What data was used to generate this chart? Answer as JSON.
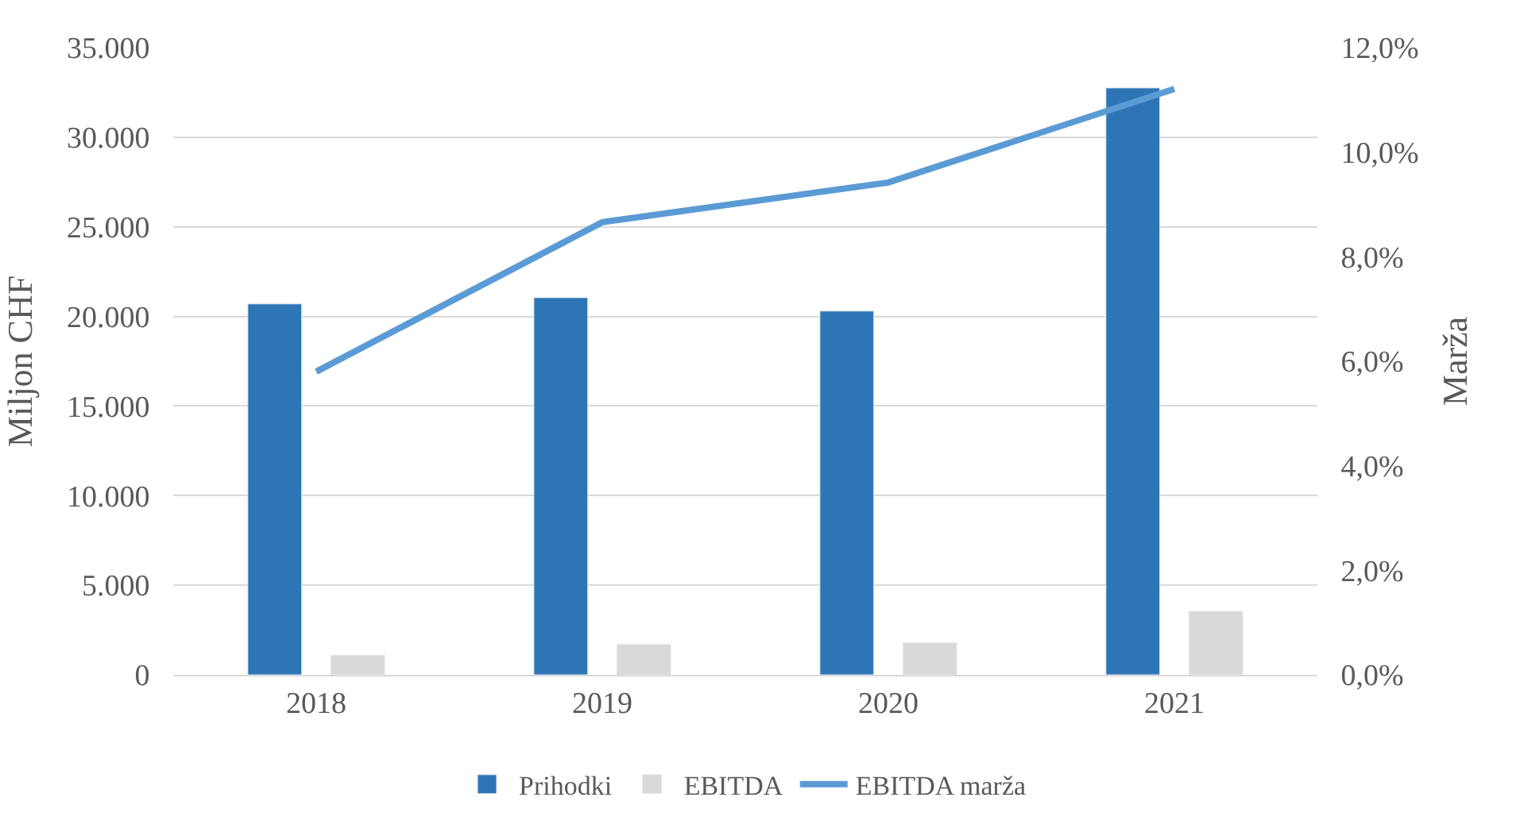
{
  "chart_data": {
    "type": "bar",
    "categories": [
      "2018",
      "2019",
      "2020",
      "2021"
    ],
    "ylabel": "Miljon CHF",
    "y2label": "Marža",
    "series": [
      {
        "name": "Prihodki",
        "color": "#2e75b6",
        "values": [
          20700,
          21050,
          20300,
          32750
        ]
      },
      {
        "name": "EBITDA",
        "color": "#d9d9d9",
        "values": [
          1100,
          1700,
          1800,
          3550
        ]
      },
      {
        "name": "EBITDA marža",
        "type": "line",
        "axis": "y2",
        "color": "#5b9bd5",
        "values": [
          5.8,
          8.66,
          9.42,
          11.21
        ]
      }
    ],
    "ylim": [
      0,
      35000
    ],
    "yticks": [
      {
        "value": 0,
        "label": "0"
      },
      {
        "value": 5000,
        "label": "5.000"
      },
      {
        "value": 10000,
        "label": "10.000"
      },
      {
        "value": 15000,
        "label": "15.000"
      },
      {
        "value": 20000,
        "label": "20.000"
      },
      {
        "value": 25000,
        "label": "25.000"
      },
      {
        "value": 30000,
        "label": "30.000"
      },
      {
        "value": 35000,
        "label": "35.000"
      }
    ],
    "y2lim": [
      0,
      12
    ],
    "y2ticks": [
      {
        "value": 0,
        "label": "0,0%"
      },
      {
        "value": 2,
        "label": "2,0%"
      },
      {
        "value": 4,
        "label": "4,0%"
      },
      {
        "value": 6,
        "label": "6,0%"
      },
      {
        "value": 8,
        "label": "8,0%"
      },
      {
        "value": 10,
        "label": "10,0%"
      },
      {
        "value": 12,
        "label": "12,0%"
      }
    ],
    "grid": "y",
    "legend": "bottom",
    "marker": "none",
    "line_style": "solid"
  }
}
